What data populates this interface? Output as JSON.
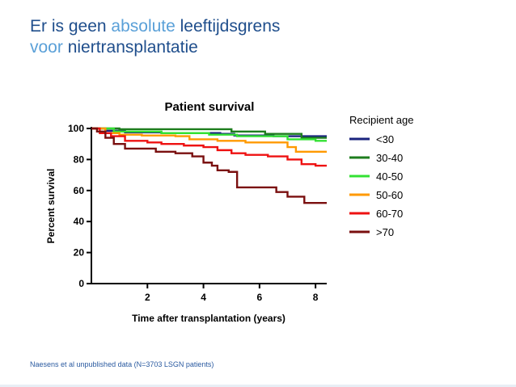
{
  "slide": {
    "title_line1": [
      "Er is ",
      "geen ",
      "absolute ",
      "leeftijdsgrens"
    ],
    "title_line2": [
      "voor ",
      "niertransplantatie"
    ],
    "footnote": "Naesens et al unpublished data (N=3703 LSGN patients)"
  },
  "colors": {
    "title_dark": "#1f4e8c",
    "title_light": "#5aa0d8",
    "<30": "#1a237e",
    "30-40": "#1e7d1e",
    "40-50": "#33e133",
    "50-60": "#ff9900",
    "60-70": "#ee1111",
    ">70": "#7a0f0f"
  },
  "chart_data": {
    "type": "line",
    "title": "Patient survival",
    "xlabel": "Time after transplantation (years)",
    "ylabel": "Percent survival",
    "xlim": [
      0,
      8.4
    ],
    "ylim": [
      0,
      100
    ],
    "xticks": [
      2,
      4,
      6,
      8
    ],
    "yticks": [
      0,
      20,
      40,
      60,
      80,
      100
    ],
    "legend_title": "Recipient age",
    "legend_position": "right",
    "grid": false,
    "series": [
      {
        "name": "<30",
        "x": [
          0,
          0.5,
          1.2,
          2.5,
          4.6,
          5.1,
          6.5,
          8.0,
          8.4
        ],
        "y": [
          100,
          98.5,
          97.5,
          97,
          96.5,
          95.5,
          95,
          95,
          95
        ]
      },
      {
        "name": "30-40",
        "x": [
          0,
          1.0,
          2.0,
          3.5,
          5.0,
          6.2,
          7.5,
          8.4
        ],
        "y": [
          100,
          99.5,
          99.5,
          99.5,
          98,
          96.5,
          94,
          94
        ]
      },
      {
        "name": "40-50",
        "x": [
          0,
          0.8,
          2.5,
          4.2,
          5.2,
          7.0,
          8.0,
          8.4
        ],
        "y": [
          100,
          98,
          97,
          96,
          95,
          93,
          92,
          92
        ]
      },
      {
        "name": "50-60",
        "x": [
          0,
          0.5,
          1.0,
          1.8,
          3.0,
          3.5,
          4.5,
          5.5,
          6.0,
          7.0,
          7.3,
          8.0,
          8.4
        ],
        "y": [
          100,
          97,
          96,
          95.5,
          95,
          93,
          92,
          91,
          91,
          88,
          85,
          85,
          85
        ]
      },
      {
        "name": "60-70",
        "x": [
          0,
          0.3,
          0.7,
          1.2,
          2.0,
          2.5,
          3.3,
          4.0,
          4.5,
          5.0,
          5.5,
          6.3,
          7.0,
          7.5,
          8.0,
          8.4
        ],
        "y": [
          100,
          97,
          95,
          92,
          91,
          90,
          89,
          88,
          86,
          84,
          83,
          82,
          80,
          77,
          76,
          76
        ]
      },
      {
        "name": ">70",
        "x": [
          0,
          0.2,
          0.5,
          0.8,
          1.2,
          2.3,
          3.0,
          3.6,
          4.0,
          4.3,
          4.5,
          4.9,
          5.2,
          5.8,
          6.3,
          6.6,
          7.0,
          7.6,
          8.4
        ],
        "y": [
          100,
          98,
          94,
          90,
          87,
          85,
          84,
          82,
          78,
          76,
          73,
          72,
          62,
          62,
          62,
          59,
          56,
          52,
          52
        ]
      }
    ]
  }
}
